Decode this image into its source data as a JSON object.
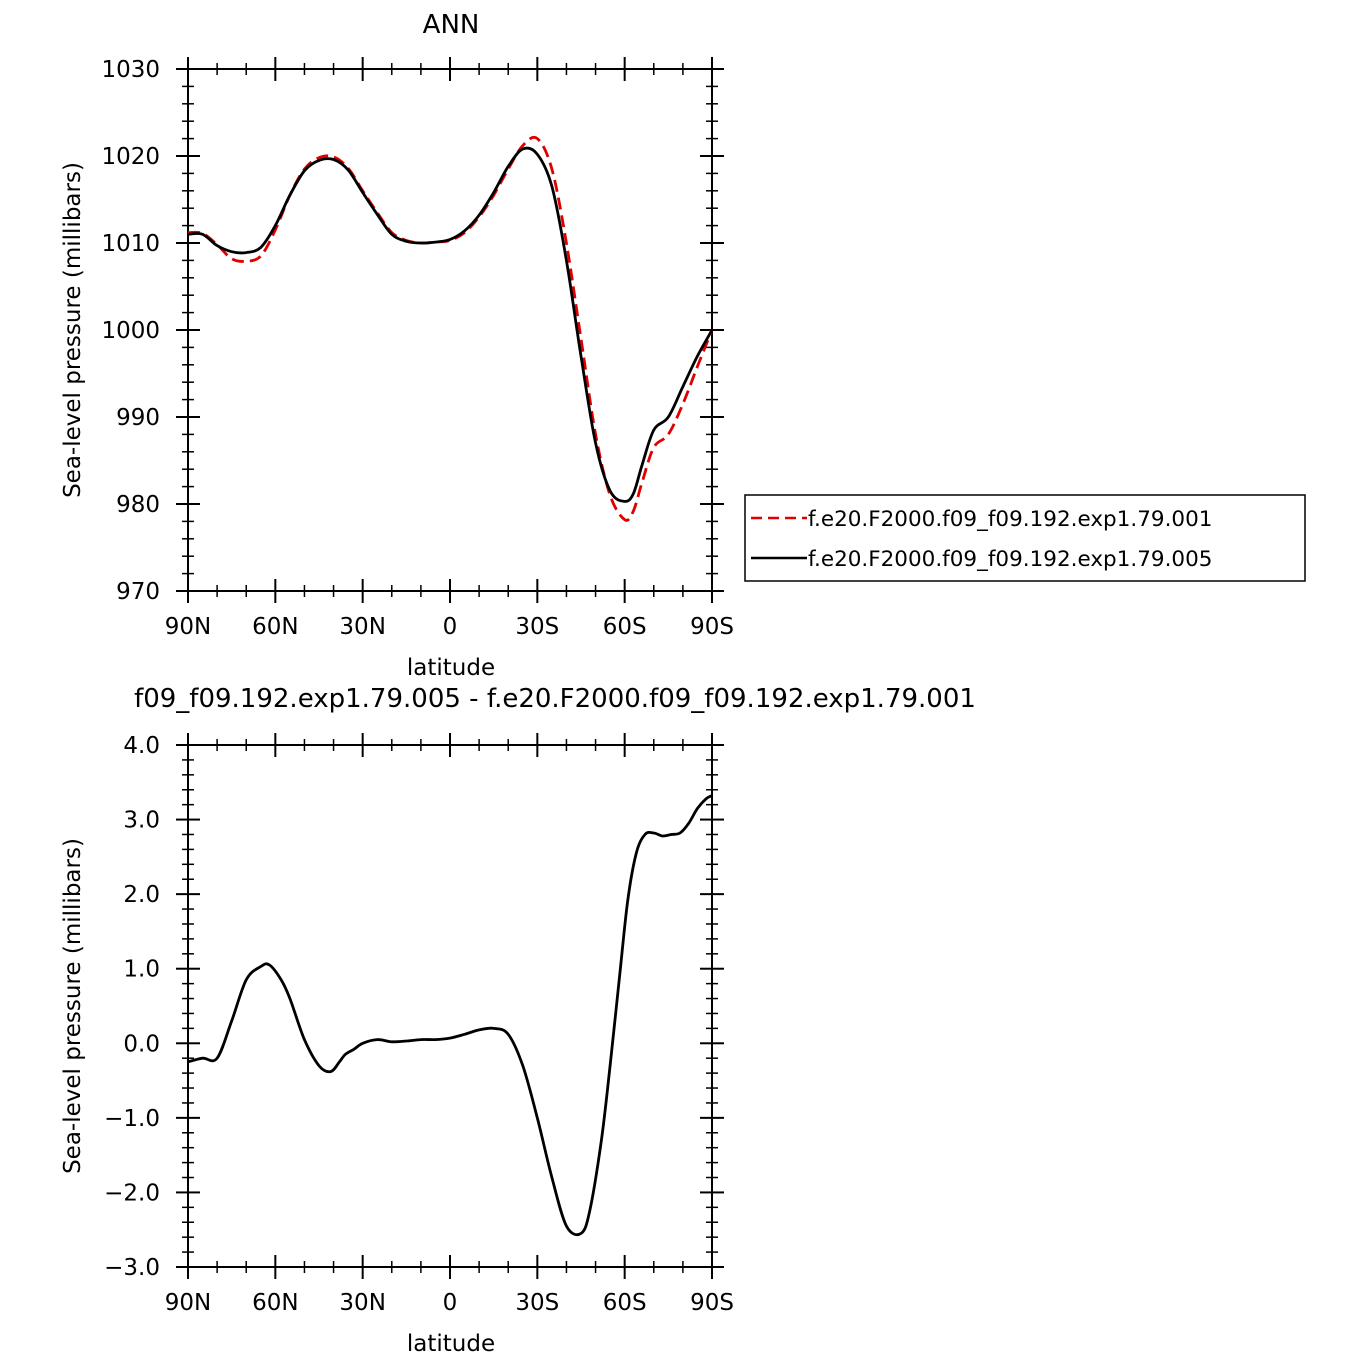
{
  "chart_data": [
    {
      "type": "line",
      "title": "ANN",
      "xlabel": "latitude",
      "ylabel": "Sea-level pressure (millibars)",
      "xlim": [
        90,
        -90
      ],
      "ylim": [
        970,
        1030
      ],
      "x_ticks": [
        90,
        60,
        30,
        0,
        -30,
        -60,
        -90
      ],
      "x_tick_labels": [
        "90N",
        "60N",
        "30N",
        "0",
        "30S",
        "60S",
        "90S"
      ],
      "y_ticks": [
        970,
        980,
        990,
        1000,
        1010,
        1020,
        1030
      ],
      "y_tick_labels": [
        "970",
        "980",
        "990",
        "1000",
        "1010",
        "1020",
        "1030"
      ],
      "legend_position": "right",
      "series": [
        {
          "name": "f.e20.F2000.f09_f09.192.exp1.79.001",
          "color": "#e00000",
          "dash": "dashed",
          "x": [
            90,
            85,
            80,
            75,
            70,
            65,
            60,
            55,
            50,
            45,
            40,
            35,
            30,
            25,
            20,
            15,
            10,
            5,
            0,
            -5,
            -10,
            -15,
            -20,
            -25,
            -30,
            -35,
            -40,
            -45,
            -50,
            -55,
            -60,
            -63,
            -66,
            -70,
            -75,
            -80,
            -85,
            -90
          ],
          "values": [
            1011.2,
            1011.1,
            1009.8,
            1008.2,
            1007.9,
            1008.5,
            1011.5,
            1015.5,
            1018.5,
            1019.8,
            1019.9,
            1018.6,
            1016.0,
            1013.5,
            1011.2,
            1010.3,
            1010.0,
            1010.1,
            1010.3,
            1011.2,
            1013.0,
            1015.5,
            1018.5,
            1021.2,
            1022.0,
            1018.5,
            1010.0,
            999.0,
            988.0,
            981.0,
            978.2,
            979.2,
            982.5,
            986.5,
            988.0,
            991.5,
            995.8,
            1000.0
          ]
        },
        {
          "name": "f.e20.F2000.f09_f09.192.exp1.79.005",
          "color": "#000000",
          "dash": "solid",
          "x": [
            90,
            85,
            80,
            75,
            70,
            65,
            60,
            55,
            50,
            45,
            40,
            35,
            30,
            25,
            20,
            15,
            10,
            5,
            0,
            -5,
            -10,
            -15,
            -20,
            -25,
            -30,
            -35,
            -40,
            -45,
            -50,
            -55,
            -60,
            -63,
            -66,
            -70,
            -75,
            -80,
            -85,
            -90
          ],
          "values": [
            1011.0,
            1011.0,
            1009.7,
            1009.0,
            1008.9,
            1009.5,
            1012.0,
            1015.5,
            1018.3,
            1019.5,
            1019.6,
            1018.4,
            1015.8,
            1013.3,
            1011.0,
            1010.2,
            1010.0,
            1010.1,
            1010.4,
            1011.4,
            1013.2,
            1015.8,
            1018.8,
            1020.8,
            1020.2,
            1016.5,
            1008.0,
            997.0,
            987.0,
            981.5,
            980.3,
            981.2,
            984.5,
            988.5,
            990.0,
            993.5,
            997.0,
            1000.0
          ]
        }
      ]
    },
    {
      "type": "line",
      "title": "f09_f09.192.exp1.79.005 - f.e20.F2000.f09_f09.192.exp1.79.001",
      "xlabel": "latitude",
      "ylabel": "Sea-level pressure (millibars)",
      "xlim": [
        90,
        -90
      ],
      "ylim": [
        -3.0,
        4.0
      ],
      "x_ticks": [
        90,
        60,
        30,
        0,
        -30,
        -60,
        -90
      ],
      "x_tick_labels": [
        "90N",
        "60N",
        "30N",
        "0",
        "30S",
        "60S",
        "90S"
      ],
      "y_ticks": [
        -3.0,
        -2.0,
        -1.0,
        0.0,
        1.0,
        2.0,
        3.0,
        4.0
      ],
      "y_tick_labels": [
        "−3.0",
        "−2.0",
        "−1.0",
        "0.0",
        "1.0",
        "2.0",
        "3.0",
        "4.0"
      ],
      "series": [
        {
          "color": "#000000",
          "dash": "solid",
          "x": [
            90,
            85,
            80,
            75,
            70,
            65,
            62,
            58,
            55,
            50,
            45,
            41,
            38,
            36,
            33,
            30,
            25,
            20,
            15,
            10,
            5,
            0,
            -5,
            -10,
            -15,
            -20,
            -25,
            -30,
            -35,
            -40,
            -45,
            -48,
            -52,
            -55,
            -58,
            -61,
            -64,
            -67,
            -70,
            -73,
            -76,
            -79,
            -82,
            -85,
            -88,
            -90
          ],
          "values": [
            -0.25,
            -0.2,
            -0.2,
            0.3,
            0.85,
            1.03,
            1.05,
            0.85,
            0.6,
            0.05,
            -0.3,
            -0.38,
            -0.25,
            -0.15,
            -0.08,
            0.0,
            0.05,
            0.02,
            0.03,
            0.05,
            0.05,
            0.07,
            0.12,
            0.18,
            0.2,
            0.12,
            -0.3,
            -1.0,
            -1.8,
            -2.45,
            -2.55,
            -2.25,
            -1.3,
            -0.3,
            0.8,
            1.9,
            2.55,
            2.8,
            2.82,
            2.78,
            2.8,
            2.82,
            2.95,
            3.15,
            3.28,
            3.32
          ]
        }
      ]
    }
  ]
}
